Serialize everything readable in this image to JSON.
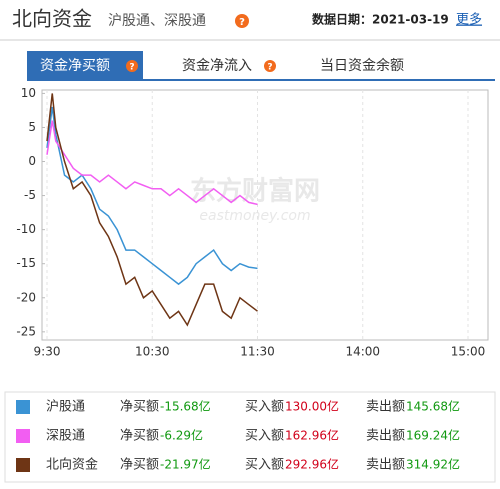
{
  "header": {
    "title": "北向资金",
    "subtitle": "沪股通、深股通",
    "date": "数据日期：2021-03-19",
    "more": "更多"
  },
  "tabs": [
    "资金净买额",
    "资金净流入",
    "当日资金余额"
  ],
  "watermark": {
    "cn": "东方财富网",
    "en": "eastmoney.com"
  },
  "chart_data": {
    "type": "line",
    "x": [
      0,
      3,
      5,
      10,
      15,
      20,
      25,
      30,
      35,
      40,
      45,
      50,
      55,
      60,
      65,
      70,
      75,
      80,
      85,
      90,
      95,
      100,
      105,
      110,
      115,
      120
    ],
    "series": [
      {
        "name": "沪股通",
        "color": "#3a93d4",
        "values": [
          2,
          8,
          4,
          -2,
          -3,
          -2,
          -4,
          -7,
          -8,
          -10,
          -13,
          -13,
          -14,
          -15,
          -16,
          -17,
          -18,
          -17,
          -15,
          -14,
          -13,
          -15,
          -16,
          -15,
          -15.5,
          -15.68
        ]
      },
      {
        "name": "深股通",
        "color": "#f25ef2",
        "values": [
          1,
          6,
          3,
          1,
          -1,
          -2,
          -2,
          -3,
          -2,
          -3,
          -4,
          -3,
          -3.5,
          -4,
          -4,
          -5,
          -4,
          -5,
          -6,
          -5,
          -4,
          -5,
          -6,
          -5,
          -6,
          -6.29
        ]
      },
      {
        "name": "北向资金",
        "color": "#6e3515",
        "values": [
          3,
          10,
          5,
          0,
          -4,
          -3,
          -5,
          -9,
          -11,
          -14,
          -18,
          -17,
          -20,
          -19,
          -21,
          -23,
          -22,
          -24,
          -21,
          -18,
          -18,
          -22,
          -23,
          -20,
          -21,
          -21.97
        ]
      }
    ],
    "xlim": [
      0,
      240
    ],
    "xticks": [
      {
        "value": 0,
        "label": "9:30"
      },
      {
        "value": 60,
        "label": "10:30"
      },
      {
        "value": 120,
        "label": "11:30"
      },
      {
        "value": 180,
        "label": "14:00"
      },
      {
        "value": 240,
        "label": "15:00"
      }
    ],
    "ylim": [
      -26.2,
      10.5
    ],
    "yticks": [
      10,
      5,
      0,
      -5,
      -10,
      -15,
      -20,
      -25
    ],
    "grid": "x"
  },
  "legend_table": [
    {
      "net_label": "净买额",
      "net": "-15.68亿",
      "buy_label": "买入额",
      "buy": "130.00亿",
      "sell_label": "卖出额",
      "sell": "145.68亿"
    },
    {
      "net_label": "净买额",
      "net": "-6.29亿",
      "buy_label": "买入额",
      "buy": "162.96亿",
      "sell_label": "卖出额",
      "sell": "169.24亿"
    },
    {
      "net_label": "净买额",
      "net": "-21.97亿",
      "buy_label": "买入额",
      "buy": "292.96亿",
      "sell_label": "卖出额",
      "sell": "314.92亿"
    }
  ]
}
